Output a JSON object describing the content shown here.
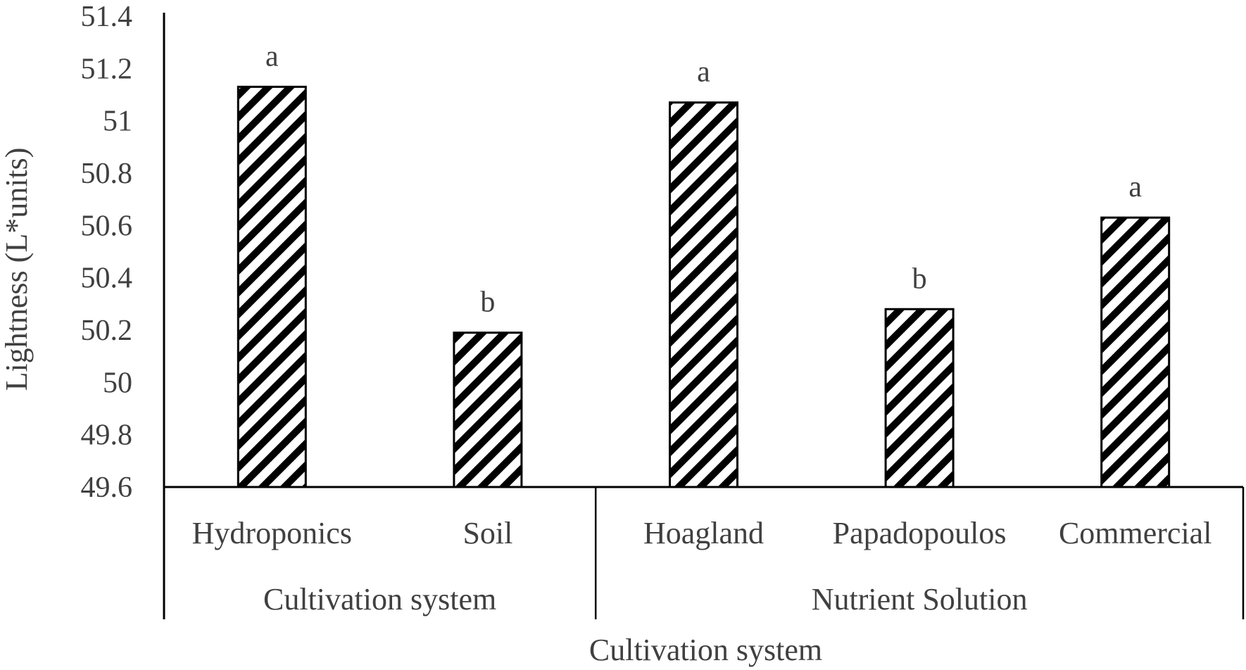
{
  "chart_data": {
    "type": "bar",
    "categories": [
      "Hydroponics",
      "Soil",
      "Hoagland",
      "Papadopoulos",
      "Commercial"
    ],
    "groups": [
      {
        "label": "Cultivation system",
        "categories": [
          "Hydroponics",
          "Soil"
        ]
      },
      {
        "label": "Nutrient Solution",
        "categories": [
          "Hoagland",
          "Papadopoulos",
          "Commercial"
        ]
      }
    ],
    "values": [
      51.13,
      50.19,
      51.07,
      50.28,
      50.63
    ],
    "significance_letters": [
      "a",
      "b",
      "a",
      "b",
      "a"
    ],
    "ylim": [
      49.6,
      51.4
    ],
    "yticks": [
      "49.6",
      "49.8",
      "50",
      "50.2",
      "50.4",
      "50.6",
      "50.8",
      "51",
      "51.2",
      "51.4"
    ],
    "ylabel": "Lightness (L*units)",
    "xlabel": "Cultivation system",
    "grid": false,
    "bar_pattern": "diagonal-hatch",
    "colors": {
      "bar_stroke": "#000000",
      "hatch": "#000000",
      "bar_fill": "#ffffff",
      "text": "#404040"
    }
  }
}
